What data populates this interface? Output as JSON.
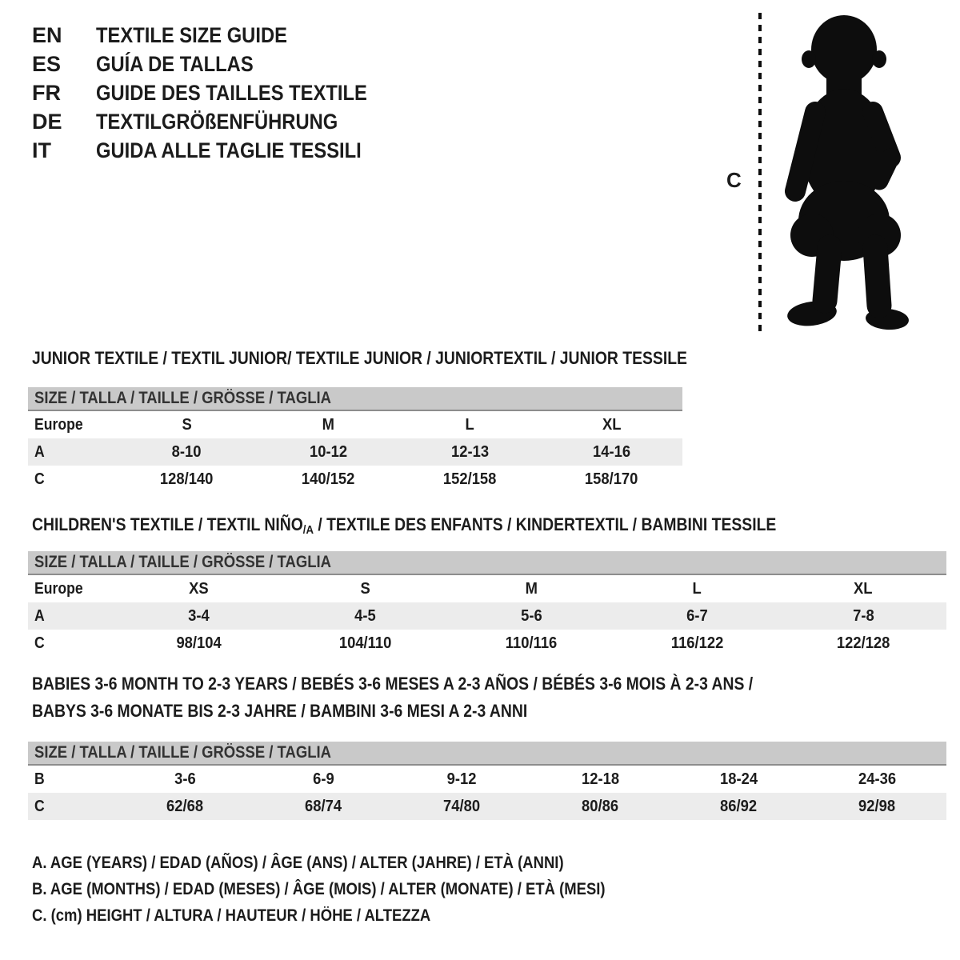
{
  "colors": {
    "text": "#1c1c1c",
    "header_bar": "#c9c9c9",
    "header_bar_edge": "#8d8d8d",
    "row_shade": "#ececec",
    "silhouette": "#0d0d0d"
  },
  "languages": {
    "items": [
      {
        "code": "EN",
        "label": "TEXTILE SIZE GUIDE"
      },
      {
        "code": "ES",
        "label": "GUÍA DE TALLAS"
      },
      {
        "code": "FR",
        "label": "GUIDE DES TAILLES TEXTILE"
      },
      {
        "code": "DE",
        "label": "TEXTILGRÖßENFÜHRUNG"
      },
      {
        "code": "IT",
        "label": "GUIDA ALLE TAGLIE TESSILI"
      }
    ]
  },
  "figure": {
    "icon": "baby-silhouette-icon",
    "measure_label": "C"
  },
  "sections": [
    {
      "id": "junior",
      "title": "JUNIOR TEXTILE / TEXTIL JUNIOR/ TEXTILE JUNIOR / JUNIORTEXTIL / JUNIOR TESSILE",
      "table": {
        "header": "SIZE / TALLA / TAILLE / GRÖSSE / TAGLIA",
        "rows": [
          [
            "Europe",
            "S",
            "M",
            "L",
            "XL"
          ],
          [
            "A",
            "8-10",
            "10-12",
            "12-13",
            "14-16"
          ],
          [
            "C",
            "128/140",
            "140/152",
            "152/158",
            "158/170"
          ]
        ]
      }
    },
    {
      "id": "children",
      "title_pre": "CHILDREN'S TEXTILE / TEXTIL NIÑO",
      "title_sub": "/A",
      "title_post": " / TEXTILE DES ENFANTS / KINDERTEXTIL / BAMBINI TESSILE",
      "table": {
        "header": "SIZE / TALLA / TAILLE / GRÖSSE / TAGLIA",
        "rows": [
          [
            "Europe",
            "XS",
            "S",
            "M",
            "L",
            "XL"
          ],
          [
            "A",
            "3-4",
            "4-5",
            "5-6",
            "6-7",
            "7-8"
          ],
          [
            "C",
            "98/104",
            "104/110",
            "110/116",
            "116/122",
            "122/128"
          ]
        ]
      }
    },
    {
      "id": "babies",
      "title_line1": "BABIES 3-6 MONTH TO 2-3 YEARS / BEBÉS 3-6 MESES A 2-3 AÑOS / BÉBÉS 3-6 MOIS À 2-3 ANS /",
      "title_line2": "BABYS 3-6 MONATE BIS 2-3 JAHRE / BAMBINI 3-6 MESI A 2-3 ANNI",
      "table": {
        "header": "SIZE / TALLA / TAILLE / GRÖSSE / TAGLIA",
        "rows": [
          [
            "B",
            "3-6",
            "6-9",
            "9-12",
            "12-18",
            "18-24",
            "24-36"
          ],
          [
            "C",
            "62/68",
            "68/74",
            "74/80",
            "80/86",
            "86/92",
            "92/98"
          ]
        ]
      }
    }
  ],
  "legend": {
    "lines": [
      "A. AGE (YEARS) / EDAD (AÑOS) / ÂGE (ANS) / ALTER (JAHRE) / ETÀ (ANNI)",
      "B. AGE (MONTHS) / EDAD (MESES) / ÂGE (MOIS) / ALTER (MONATE) / ETÀ (MESI)",
      "C. (cm) HEIGHT / ALTURA / HAUTEUR / HÖHE / ALTEZZA"
    ]
  }
}
